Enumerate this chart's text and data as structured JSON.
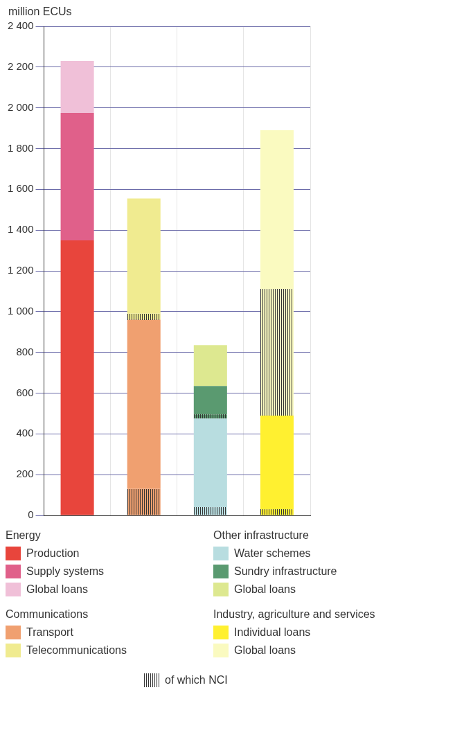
{
  "chart_data": {
    "type": "bar",
    "ylabel": "million ECUs",
    "categories": [
      null,
      null,
      null,
      null
    ],
    "stacked": true,
    "grid": true,
    "legend": "bottom",
    "tick_labels": "y",
    "annotations": [
      "Energy",
      "Communications",
      "Other infrastructure",
      "Industry, agriculture and services"
    ],
    "ylim": [
      0,
      2400
    ],
    "yticks": [
      0,
      200,
      400,
      600,
      800,
      {
        "value": 1000,
        "label": "1 000"
      },
      {
        "value": 1200,
        "label": "1 200"
      },
      {
        "value": 1400,
        "label": "1 400"
      },
      {
        "value": 1600,
        "label": "1 600"
      },
      {
        "value": 1800,
        "label": "1 800"
      },
      {
        "value": 2000,
        "label": "2 000"
      },
      {
        "value": 2200,
        "label": "2 200"
      },
      {
        "value": 2400,
        "label": "2 400"
      }
    ],
    "series": [
      {
        "name": "Production",
        "color": "#e8453c",
        "values": [
          1350,
          null,
          null,
          null
        ]
      },
      {
        "name": "Supply systems",
        "color": "#e0608a",
        "values": [
          625,
          null,
          null,
          null
        ]
      },
      {
        "name": "Global loans",
        "color": "#f0c0d8",
        "values": [
          255,
          null,
          null,
          null
        ]
      },
      {
        "name": "of which NCI",
        "color": "#333333",
        "colors": [
          null,
          "#f0a070",
          "#b8dde0",
          "#fff030"
        ],
        "values": [
          null,
          130,
          40,
          30
        ]
      },
      {
        "name": "Transport",
        "color": "#f0a070",
        "values": [
          null,
          830,
          null,
          null
        ]
      },
      {
        "name": "Water schemes",
        "color": "#b8dde0",
        "values": [
          null,
          null,
          435,
          null
        ]
      },
      {
        "name": "Individual loans",
        "color": "#fff030",
        "values": [
          null,
          null,
          null,
          460
        ]
      },
      {
        "color": "#333333",
        "colors": [
          null,
          "#f0eb90",
          "#5a9a70",
          "#fafac0"
        ],
        "values": [
          null,
          30,
          20,
          620
        ]
      },
      {
        "name": "Telecommunications",
        "color": "#f0eb90",
        "values": [
          null,
          565,
          null,
          null
        ]
      },
      {
        "name": "Sundry infrastructure",
        "color": "#5a9a70",
        "values": [
          null,
          null,
          140,
          null
        ]
      },
      {
        "name": "Global loans",
        "color": "#dde890",
        "values": [
          null,
          null,
          200,
          null
        ]
      },
      {
        "name": "Global loans",
        "color": "#fafac0",
        "values": [
          null,
          null,
          null,
          780
        ]
      }
    ]
  }
}
